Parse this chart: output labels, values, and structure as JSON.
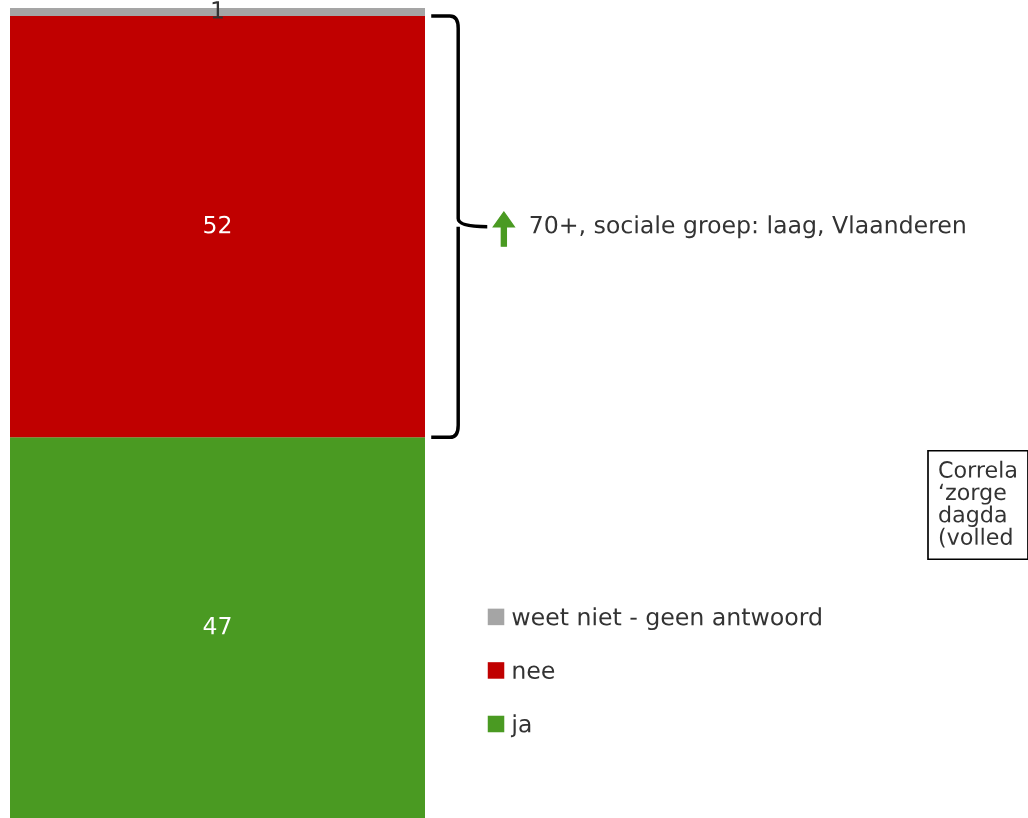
{
  "chart_data": {
    "type": "bar",
    "stacked": true,
    "categories": [
      null
    ],
    "series": [
      {
        "name": "ja",
        "color": "#4a9a22",
        "values": [
          47
        ]
      },
      {
        "name": "nee",
        "color": "#c00000",
        "values": [
          52
        ]
      },
      {
        "name": "weet niet - geen antwoord",
        "color": "#a5a5a5",
        "values": [
          1
        ]
      }
    ],
    "data_labels": true,
    "legend": "right",
    "annotations": [
      "70+, sociale groep: laag, Vlaanderen",
      "Correla\n‘zorge\ndagda\n(volled"
    ]
  }
}
